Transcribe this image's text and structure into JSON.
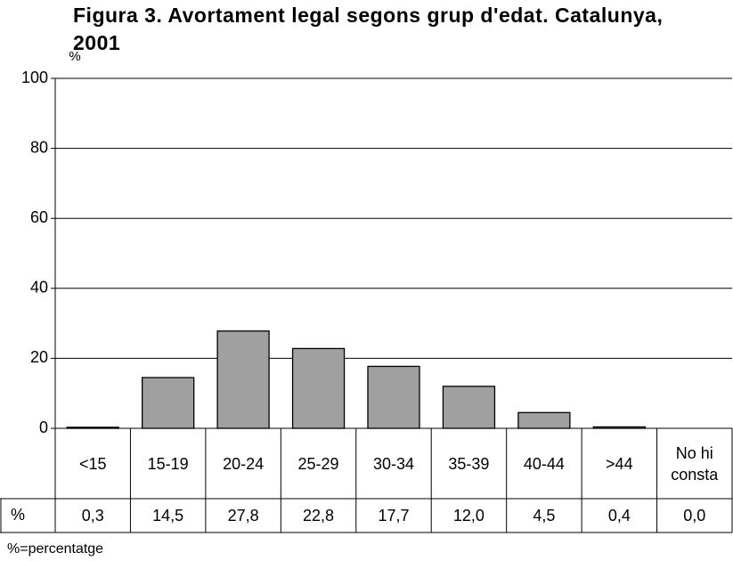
{
  "chart_data": {
    "type": "bar",
    "title": "Figura 3. Avortament legal segons grup d'edat. Catalunya, 2001",
    "y_label": "%",
    "categories": [
      "<15",
      "15-19",
      "20-24",
      "25-29",
      "30-34",
      "35-39",
      "40-44",
      ">44",
      "No hi consta"
    ],
    "series_label": "%",
    "values": [
      0.3,
      14.5,
      27.8,
      22.8,
      17.7,
      12.0,
      4.5,
      0.4,
      0.0
    ],
    "value_labels": [
      "0,3",
      "14,5",
      "27,8",
      "22,8",
      "17,7",
      "12,0",
      "4,5",
      "0,4",
      "0,0"
    ],
    "color": "#a0a0a0",
    "ylim": [
      0,
      100
    ],
    "yticks": [
      0,
      20,
      40,
      60,
      80,
      100
    ],
    "grid": true,
    "footnote": "%=percentatge"
  }
}
